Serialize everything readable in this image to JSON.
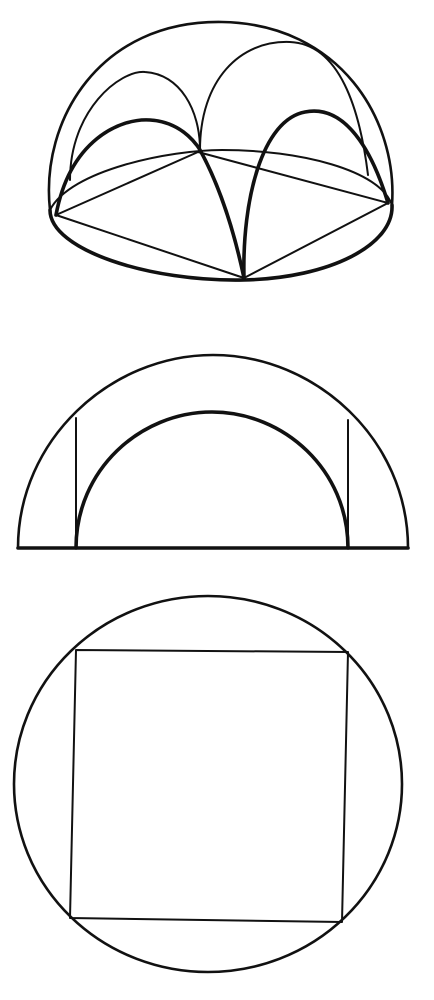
{
  "figure": {
    "caption": "",
    "views": [
      {
        "id": "perspective",
        "description_visible": false
      },
      {
        "id": "elevation",
        "description_visible": false
      },
      {
        "id": "plan",
        "description_visible": false
      }
    ],
    "colors": {
      "ink": "#111111",
      "paper": "#ffffff"
    }
  }
}
